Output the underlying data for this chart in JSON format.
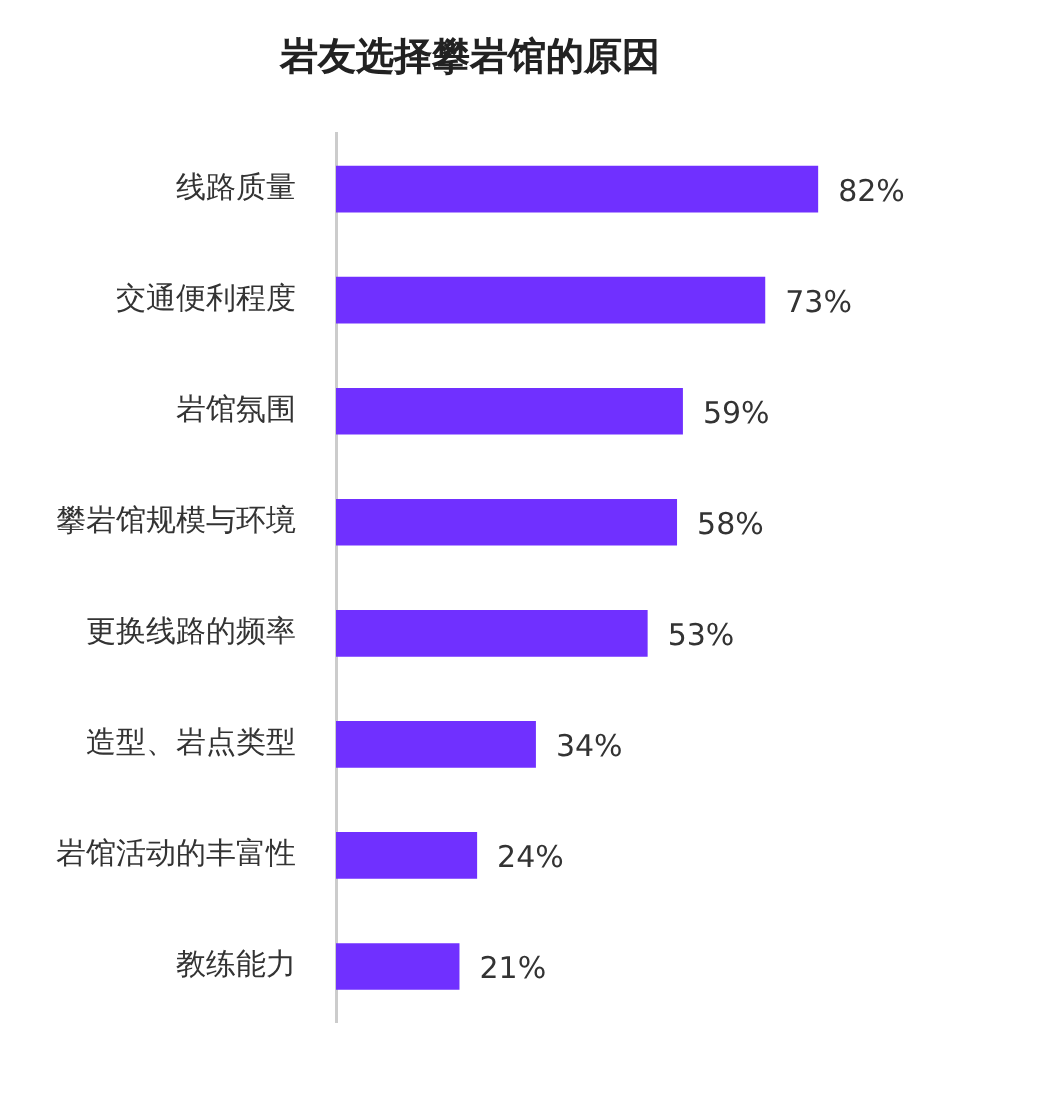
{
  "chart_data": {
    "type": "bar",
    "orientation": "horizontal",
    "title": "岩友选择攀岩馆的原因",
    "categories": [
      "线路质量",
      "交通便利程度",
      "岩馆氛围",
      "攀岩馆规模与环境",
      "更换线路的频率",
      "造型、岩点类型",
      "岩馆活动的丰富性",
      "教练能力"
    ],
    "values": [
      82,
      73,
      59,
      58,
      53,
      34,
      24,
      21
    ],
    "value_labels": [
      "82%",
      "73%",
      "59%",
      "58%",
      "53%",
      "34%",
      "24%",
      "21%"
    ],
    "color": "#7030ff"
  }
}
